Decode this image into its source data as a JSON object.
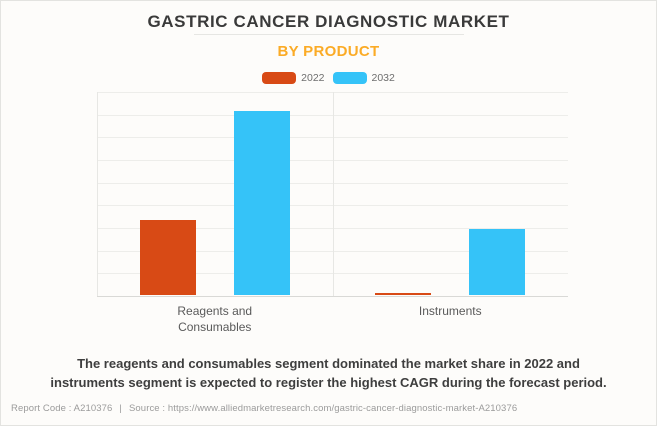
{
  "header": {
    "title": "GASTRIC CANCER DIAGNOSTIC MARKET",
    "subtitle": "BY PRODUCT"
  },
  "legend": [
    {
      "label": "2022",
      "color": "#d84a15"
    },
    {
      "label": "2032",
      "color": "#35c3f8"
    }
  ],
  "chart_data": {
    "type": "bar",
    "title": "GASTRIC CANCER DIAGNOSTIC MARKET",
    "subtitle": "BY PRODUCT",
    "categories": [
      "Reagents and Consumables",
      "Instruments"
    ],
    "series": [
      {
        "name": "2022",
        "color": "#d84a15",
        "values": [
          3.3,
          0.1
        ]
      },
      {
        "name": "2032",
        "color": "#35c3f8",
        "values": [
          8.1,
          2.9
        ]
      }
    ],
    "xlabel": "",
    "ylabel": "",
    "ylim": [
      0,
      9
    ],
    "y_gridline_intervals": 9,
    "y_axis_tick_labels_visible": false,
    "grid": true,
    "legend_position": "top"
  },
  "footer": {
    "summary_line1": "The reagents and consumables segment dominated the market share in 2022 and",
    "summary_line2": "instruments segment is expected to register the highest CAGR during the forecast period.",
    "report_code_label": "Report Code : A210376",
    "separator": "|",
    "source_label": "Source : https://www.alliedmarketresearch.com/gastric-cancer-diagnostic-market-A210376"
  }
}
